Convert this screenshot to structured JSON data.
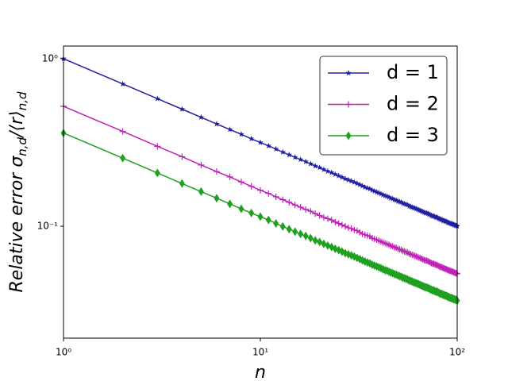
{
  "chart_data": {
    "type": "line",
    "xlabel": "n",
    "ylabel": [
      "Relative error σ",
      "n,d",
      "/⟨r⟩",
      "n,d"
    ],
    "xscale": "log",
    "yscale": "log",
    "xlim": [
      1,
      100
    ],
    "ylim": [
      0.0215,
      1.19
    ],
    "xticks": [
      {
        "value": 1,
        "label": "10⁰"
      },
      {
        "value": 10,
        "label": "10¹"
      },
      {
        "value": 100,
        "label": "10²"
      }
    ],
    "yticks": [
      {
        "value": 0.1,
        "label": "10⁻¹"
      },
      {
        "value": 1,
        "label": "10⁰"
      }
    ],
    "legend": "upper right",
    "x": [
      1,
      2,
      3,
      4,
      5,
      6,
      7,
      8,
      9,
      10,
      11,
      12,
      13,
      14,
      15,
      16,
      17,
      18,
      19,
      20,
      21,
      22,
      23,
      24,
      25,
      26,
      27,
      28,
      29,
      30,
      31,
      32,
      33,
      34,
      35,
      36,
      37,
      38,
      39,
      40,
      41,
      42,
      43,
      44,
      45,
      46,
      47,
      48,
      49,
      50,
      51,
      52,
      53,
      54,
      55,
      56,
      57,
      58,
      59,
      60,
      61,
      62,
      63,
      64,
      65,
      66,
      67,
      68,
      69,
      70,
      71,
      72,
      73,
      74,
      75,
      76,
      77,
      78,
      79,
      80,
      81,
      82,
      83,
      84,
      85,
      86,
      87,
      88,
      89,
      90,
      91,
      92,
      93,
      94,
      95,
      96,
      97,
      98,
      99,
      100
    ],
    "series": [
      {
        "name": "d = 1",
        "color": "#2020a0",
        "marker": "star",
        "values": [
          1,
          0.707,
          0.577,
          0.5,
          0.447,
          0.408,
          0.378,
          0.354,
          0.333,
          0.316,
          0.302,
          0.289,
          0.277,
          0.267,
          0.258,
          0.25,
          0.243,
          0.236,
          0.229,
          0.224,
          0.218,
          0.213,
          0.209,
          0.204,
          0.2,
          0.196,
          0.192,
          0.189,
          0.186,
          0.183,
          0.18,
          0.177,
          0.174,
          0.171,
          0.169,
          0.167,
          0.164,
          0.162,
          0.16,
          0.158,
          0.156,
          0.154,
          0.152,
          0.151,
          0.149,
          0.147,
          0.146,
          0.144,
          0.143,
          0.141,
          0.14,
          0.139,
          0.137,
          0.136,
          0.135,
          0.134,
          0.132,
          0.131,
          0.13,
          0.129,
          0.128,
          0.127,
          0.126,
          0.125,
          0.124,
          0.123,
          0.122,
          0.121,
          0.12,
          0.12,
          0.119,
          0.118,
          0.117,
          0.116,
          0.115,
          0.115,
          0.114,
          0.113,
          0.113,
          0.112,
          0.111,
          0.11,
          0.11,
          0.109,
          0.108,
          0.108,
          0.107,
          0.107,
          0.106,
          0.105,
          0.105,
          0.104,
          0.104,
          0.103,
          0.103,
          0.102,
          0.102,
          0.101,
          0.101,
          0.1
        ]
      },
      {
        "name": "d = 2",
        "color": "#c020b8",
        "marker": "plus",
        "values": [
          0.52,
          0.368,
          0.3,
          0.26,
          0.232,
          0.212,
          0.197,
          0.184,
          0.173,
          0.164,
          0.157,
          0.15,
          0.144,
          0.139,
          0.134,
          0.13,
          0.126,
          0.123,
          0.119,
          0.116,
          0.113,
          0.111,
          0.109,
          0.106,
          0.104,
          0.102,
          0.1,
          0.098,
          0.097,
          0.095,
          0.094,
          0.092,
          0.09,
          0.089,
          0.088,
          0.087,
          0.085,
          0.084,
          0.083,
          0.082,
          0.081,
          0.08,
          0.079,
          0.0785,
          0.0775,
          0.0764,
          0.0759,
          0.0749,
          0.0744,
          0.0733,
          0.0728,
          0.0723,
          0.0712,
          0.0707,
          0.0702,
          0.0697,
          0.0686,
          0.0681,
          0.0676,
          0.0671,
          0.0666,
          0.066,
          0.0655,
          0.065,
          0.0645,
          0.064,
          0.0634,
          0.0629,
          0.0624,
          0.0624,
          0.0619,
          0.0614,
          0.0608,
          0.0603,
          0.0598,
          0.0598,
          0.0593,
          0.0588,
          0.0588,
          0.0582,
          0.0577,
          0.0572,
          0.0572,
          0.0567,
          0.0562,
          0.0562,
          0.0556,
          0.0556,
          0.0551,
          0.0546,
          0.0546,
          0.0541,
          0.0541,
          0.0536,
          0.0536,
          0.053,
          0.053,
          0.0525,
          0.0525,
          0.052
        ]
      },
      {
        "name": "d = 3",
        "color": "#20a020",
        "marker": "diamond",
        "values": [
          0.36,
          0.255,
          0.208,
          0.18,
          0.161,
          0.147,
          0.136,
          0.127,
          0.12,
          0.114,
          0.109,
          0.104,
          0.0997,
          0.0961,
          0.0929,
          0.09,
          0.0875,
          0.085,
          0.0824,
          0.0806,
          0.0785,
          0.0767,
          0.0752,
          0.0734,
          0.072,
          0.0706,
          0.0691,
          0.068,
          0.067,
          0.0659,
          0.0648,
          0.0637,
          0.0626,
          0.0616,
          0.0608,
          0.0601,
          0.059,
          0.0583,
          0.0576,
          0.0569,
          0.0562,
          0.0554,
          0.0547,
          0.0544,
          0.0536,
          0.0529,
          0.0526,
          0.0518,
          0.0515,
          0.0508,
          0.0504,
          0.05,
          0.0493,
          0.049,
          0.0486,
          0.0482,
          0.0475,
          0.0472,
          0.0468,
          0.0464,
          0.0461,
          0.0457,
          0.0454,
          0.045,
          0.0446,
          0.0443,
          0.0439,
          0.0436,
          0.0432,
          0.0432,
          0.0428,
          0.0425,
          0.0421,
          0.0418,
          0.0414,
          0.0414,
          0.041,
          0.0407,
          0.0407,
          0.0403,
          0.04,
          0.0396,
          0.0396,
          0.0392,
          0.0389,
          0.0389,
          0.0385,
          0.0385,
          0.0382,
          0.0378,
          0.0378,
          0.0374,
          0.0374,
          0.0371,
          0.0371,
          0.0367,
          0.0367,
          0.0364,
          0.0364,
          0.036
        ]
      }
    ]
  }
}
